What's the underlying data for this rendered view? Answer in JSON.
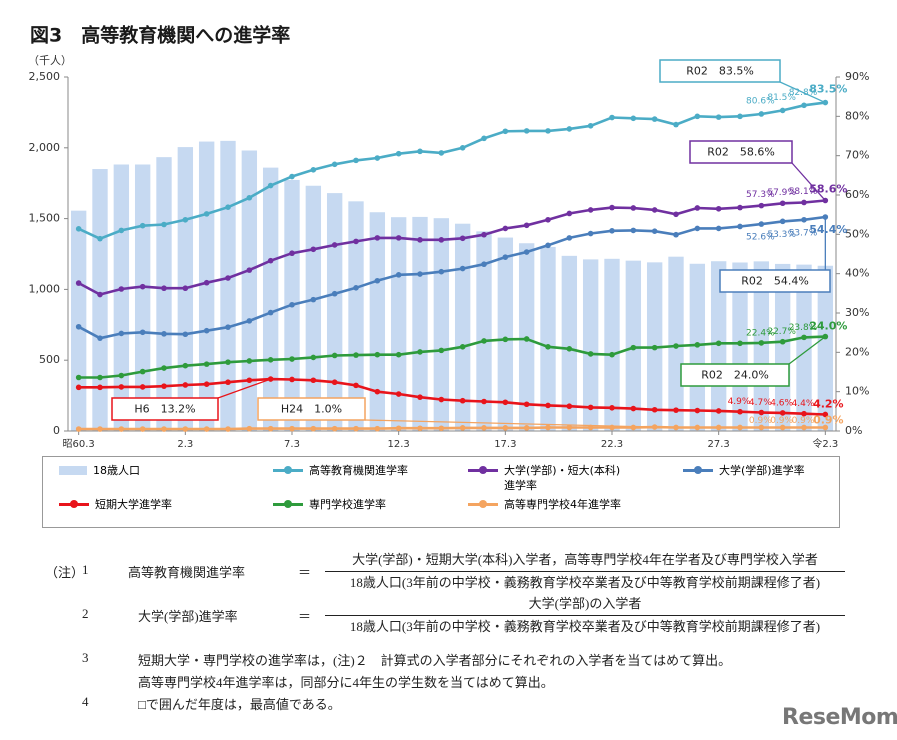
{
  "chart_data": {
    "type": "combo",
    "title": "図3　高等教育機関への進学率",
    "y_label": "（千人）",
    "categories": [
      "昭60.3",
      null,
      null,
      null,
      null,
      "2.3",
      null,
      null,
      null,
      null,
      "7.3",
      null,
      null,
      null,
      null,
      "12.3",
      null,
      null,
      null,
      null,
      "17.3",
      null,
      null,
      null,
      null,
      "22.3",
      null,
      null,
      null,
      null,
      "27.3",
      null,
      null,
      null,
      null,
      "令2.3"
    ],
    "ylim": [
      0,
      2500
    ],
    "yticks": [
      0,
      500,
      {
        "value": 1000,
        "label": "1,000"
      },
      {
        "value": 1500,
        "label": "1,500"
      },
      {
        "value": 2000,
        "label": "2,000"
      },
      {
        "value": 2500,
        "label": "2,500"
      }
    ],
    "y2lim": [
      0,
      90
    ],
    "y2ticks": [
      {
        "value": 0,
        "label": "0%"
      },
      {
        "value": 10,
        "label": "10%"
      },
      {
        "value": 20,
        "label": "20%"
      },
      {
        "value": 30,
        "label": "30%"
      },
      {
        "value": 40,
        "label": "40%"
      },
      {
        "value": 50,
        "label": "50%"
      },
      {
        "value": 60,
        "label": "60%"
      },
      {
        "value": 70,
        "label": "70%"
      },
      {
        "value": 80,
        "label": "80%"
      },
      {
        "value": 90,
        "label": "90%"
      }
    ],
    "grid": false,
    "series": [
      {
        "name": "18歳人口",
        "type": "bar",
        "color": "#c6d9f1",
        "values": [
          1556,
          1850,
          1882,
          1882,
          1934,
          2005,
          2044,
          2049,
          1981,
          1860,
          1773,
          1732,
          1680,
          1622,
          1545,
          1510,
          1512,
          1503,
          1464,
          1410,
          1366,
          1326,
          1300,
          1237,
          1212,
          1216,
          1203,
          1191,
          1231,
          1181,
          1199,
          1190,
          1198,
          1180,
          1175,
          1167
        ]
      },
      {
        "name": "高等教育機関進学率",
        "type": "line",
        "axis": "y2",
        "color": "#4bacc6",
        "values": [
          51.4,
          48.9,
          51.0,
          52.2,
          52.5,
          53.7,
          55.2,
          56.9,
          59.3,
          62.4,
          64.7,
          66.4,
          67.8,
          68.8,
          69.4,
          70.5,
          71.1,
          70.7,
          72.0,
          74.4,
          76.2,
          76.3,
          76.3,
          76.8,
          77.6,
          79.7,
          79.5,
          79.3,
          77.9,
          80.0,
          79.8,
          80.0,
          80.6,
          81.5,
          82.8,
          83.5
        ],
        "value_labels": [
          null,
          null,
          null,
          null,
          null,
          null,
          null,
          null,
          null,
          null,
          null,
          null,
          null,
          null,
          null,
          null,
          null,
          null,
          null,
          null,
          null,
          null,
          null,
          null,
          null,
          null,
          null,
          null,
          null,
          null,
          null,
          null,
          "80.6%",
          "81.5%",
          "82.8%",
          "83.5%"
        ]
      },
      {
        "name": "大学(学部)・短大(本科)進学率",
        "type": "line",
        "axis": "y2",
        "color": "#7030a0",
        "values": [
          37.6,
          34.7,
          36.1,
          36.7,
          36.3,
          36.3,
          37.7,
          38.9,
          40.9,
          43.3,
          45.2,
          46.2,
          47.3,
          48.2,
          49.1,
          49.1,
          48.6,
          48.6,
          49.0,
          49.9,
          51.5,
          52.3,
          53.7,
          55.3,
          56.2,
          56.8,
          56.7,
          56.2,
          55.1,
          56.7,
          56.5,
          56.8,
          57.3,
          57.9,
          58.1,
          58.6
        ],
        "value_labels": [
          null,
          null,
          null,
          null,
          null,
          null,
          null,
          null,
          null,
          null,
          null,
          null,
          null,
          null,
          null,
          null,
          null,
          null,
          null,
          null,
          null,
          null,
          null,
          null,
          null,
          null,
          null,
          null,
          null,
          null,
          null,
          null,
          "57.3%",
          "57.9%",
          "58.1%",
          "58.6%"
        ]
      },
      {
        "name": "大学(学部)進学率",
        "type": "line",
        "axis": "y2",
        "color": "#4a7ebb",
        "values": [
          26.5,
          23.6,
          24.8,
          25.1,
          24.7,
          24.6,
          25.5,
          26.4,
          28.0,
          30.1,
          32.1,
          33.4,
          34.9,
          36.4,
          38.2,
          39.7,
          39.9,
          40.5,
          41.3,
          42.4,
          44.2,
          45.5,
          47.2,
          49.1,
          50.2,
          50.9,
          51.0,
          50.8,
          49.9,
          51.5,
          51.5,
          52.0,
          52.6,
          53.3,
          53.7,
          54.4
        ],
        "value_labels": [
          null,
          null,
          null,
          null,
          null,
          null,
          null,
          null,
          null,
          null,
          null,
          null,
          null,
          null,
          null,
          null,
          null,
          null,
          null,
          null,
          null,
          null,
          null,
          null,
          null,
          null,
          null,
          null,
          null,
          null,
          null,
          null,
          "52.6%",
          "53.3%",
          "53.7%",
          "54.4%"
        ]
      },
      {
        "name": "短期大学進学率",
        "type": "line",
        "axis": "y2",
        "color": "#e8141b",
        "values": [
          11.1,
          11.1,
          11.2,
          11.2,
          11.4,
          11.7,
          11.9,
          12.4,
          12.9,
          13.2,
          13.1,
          12.9,
          12.4,
          11.6,
          10.0,
          9.4,
          8.6,
          8.0,
          7.7,
          7.5,
          7.3,
          6.8,
          6.5,
          6.3,
          6.0,
          5.9,
          5.7,
          5.4,
          5.3,
          5.2,
          5.1,
          4.9,
          4.7,
          4.6,
          4.4,
          4.2
        ],
        "value_labels": [
          null,
          null,
          null,
          null,
          null,
          null,
          null,
          null,
          null,
          null,
          null,
          null,
          null,
          null,
          null,
          null,
          null,
          null,
          null,
          null,
          null,
          null,
          null,
          null,
          null,
          null,
          null,
          null,
          null,
          null,
          null,
          "4.9%",
          "4.7%",
          "4.6%",
          "4.4%",
          "4.2%"
        ]
      },
      {
        "name": "専門学校進学率",
        "type": "line",
        "axis": "y2",
        "color": "#2e9b3c",
        "values": [
          13.6,
          13.6,
          14.1,
          15.1,
          16.0,
          16.6,
          17.0,
          17.5,
          17.8,
          18.1,
          18.3,
          18.7,
          19.2,
          19.3,
          19.4,
          19.4,
          20.1,
          20.5,
          21.4,
          22.9,
          23.3,
          23.4,
          21.4,
          20.9,
          19.6,
          19.4,
          21.2,
          21.2,
          21.6,
          21.9,
          22.3,
          22.3,
          22.4,
          22.7,
          23.8,
          24.0
        ],
        "value_labels": [
          null,
          null,
          null,
          null,
          null,
          null,
          null,
          null,
          null,
          null,
          null,
          null,
          null,
          null,
          null,
          null,
          null,
          null,
          null,
          null,
          null,
          null,
          null,
          null,
          null,
          null,
          null,
          null,
          null,
          null,
          null,
          null,
          "22.4%",
          "22.7%",
          "23.8%",
          "24.0%"
        ]
      },
      {
        "name": "高等専門学校4年進学率",
        "type": "line",
        "axis": "y2",
        "color": "#f4a460",
        "values": [
          0.5,
          0.5,
          0.5,
          0.5,
          0.5,
          0.5,
          0.5,
          0.5,
          0.6,
          0.6,
          0.6,
          0.6,
          0.6,
          0.6,
          0.6,
          0.7,
          0.7,
          0.7,
          0.8,
          0.8,
          0.8,
          0.8,
          0.9,
          0.9,
          0.9,
          0.9,
          0.9,
          1.0,
          0.9,
          0.9,
          0.9,
          0.9,
          0.9,
          0.9,
          0.9,
          0.9
        ],
        "value_labels": [
          null,
          null,
          null,
          null,
          null,
          null,
          null,
          null,
          null,
          null,
          null,
          null,
          null,
          null,
          null,
          null,
          null,
          null,
          null,
          null,
          null,
          null,
          null,
          null,
          null,
          null,
          null,
          null,
          null,
          null,
          null,
          null,
          "0.9%",
          "0.9%",
          "0.9%",
          "0.9%"
        ]
      }
    ],
    "annotations": [
      "R02　83.5%",
      "R02　58.6%",
      "R02　54.4%",
      "R02　24.0%",
      "H6　13.2%",
      "H24　1.0%"
    ]
  },
  "notes": {
    "heading": "（注）",
    "items": [
      {
        "number": "1",
        "label": "高等教育機関進学率",
        "equals": "＝",
        "numerator": "大学(学部)・短期大学(本科)入学者，高等専門学校4年在学者及び専門学校入学者",
        "denominator": "18歳人口(3年前の中学校・義務教育学校卒業者及び中等教育学校前期課程修了者)"
      },
      {
        "number": "2",
        "label": "大学(学部)進学率",
        "equals": "＝",
        "numerator": "大学(学部)の入学者",
        "denominator": "18歳人口(3年前の中学校・義務教育学校卒業者及び中等教育学校前期課程修了者)"
      },
      {
        "number": "3",
        "lines": [
          "短期大学・専門学校の進学率は，(注)２　計算式の入学者部分にそれぞれの入学者を当てはめて算出。",
          "高等専門学校4年進学率は，同部分に4年生の学生数を当てはめて算出。"
        ]
      },
      {
        "number": "4",
        "lines": [
          "□で囲んだ年度は，最高値である。"
        ]
      }
    ]
  },
  "watermark": "ReseMom"
}
